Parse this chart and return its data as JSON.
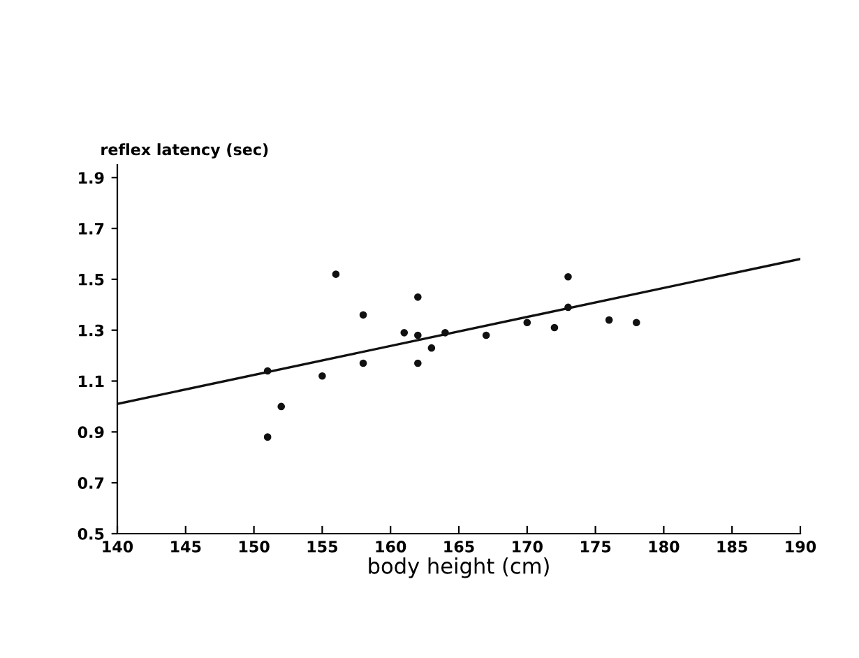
{
  "chart_data": {
    "type": "scatter",
    "xlabel": "body height (cm)",
    "ylabel": "reflex latency (sec)",
    "xlim": [
      140,
      190
    ],
    "xticks": [
      140,
      145,
      150,
      155,
      160,
      165,
      170,
      175,
      180,
      185,
      190
    ],
    "ylim": [
      0.5,
      1.95
    ],
    "yticks": [
      0.5,
      0.7,
      0.9,
      1.1,
      1.3,
      1.5,
      1.7,
      1.9
    ],
    "grid": false,
    "series": [
      {
        "color": "#111111",
        "marker": "circle",
        "x": [
          151,
          151,
          152,
          155,
          156,
          158,
          158,
          161,
          162,
          162,
          162,
          163,
          164,
          167,
          170,
          172,
          173,
          173,
          176,
          178
        ],
        "values": [
          0.88,
          1.14,
          1.0,
          1.12,
          1.52,
          1.36,
          1.17,
          1.29,
          1.43,
          1.28,
          1.17,
          1.23,
          1.29,
          1.28,
          1.33,
          1.31,
          1.51,
          1.39,
          1.34,
          1.33
        ]
      },
      {
        "type": "line",
        "color": "#111111",
        "marker": "none",
        "x": [
          140,
          190
        ],
        "values": [
          1.01,
          1.58
        ]
      }
    ]
  }
}
